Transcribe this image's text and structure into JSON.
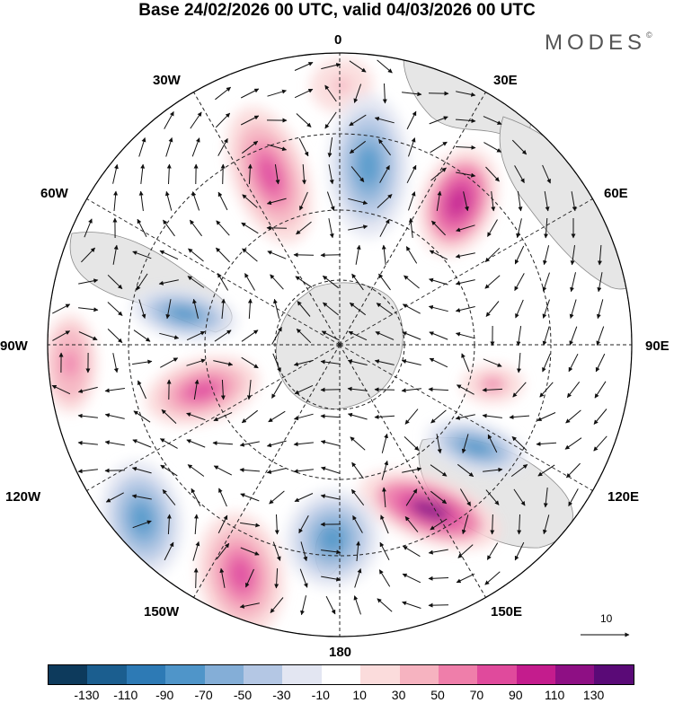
{
  "title": "Base 24/02/2026 00 UTC, valid 04/03/2026 00 UTC",
  "brand": "MODES",
  "brand_mark": "©",
  "lon_labels": {
    "l0": "0",
    "l30e": "30E",
    "l60e": "60E",
    "l90e": "90E",
    "l120e": "120E",
    "l150e": "150E",
    "l180": "180",
    "l150w": "150W",
    "l120w": "120W",
    "l90w": "90W",
    "l60w": "60W",
    "l30w": "30W"
  },
  "reference_vector_label": "10",
  "colorbar": {
    "colors": [
      "#0d3a5c",
      "#1b5e8f",
      "#2d7ab5",
      "#4f95c9",
      "#84aed7",
      "#b4c7e4",
      "#e3e6f2",
      "#ffffff",
      "#fbdcdc",
      "#f6b3c0",
      "#ef7eaa",
      "#e04a9c",
      "#c41c8d",
      "#8e0f84",
      "#5a0a77"
    ],
    "ticks": [
      "-130",
      "-110",
      "-90",
      "-70",
      "-50",
      "-30",
      "-10",
      "10",
      "30",
      "50",
      "70",
      "90",
      "110",
      "130"
    ]
  },
  "anomaly_centers": [
    {
      "name": "positive-anomaly-zero-meridian-north",
      "value": 30
    },
    {
      "name": "positive-anomaly-30w-sector",
      "value": 85
    },
    {
      "name": "negative-anomaly-near-0",
      "value": -80
    },
    {
      "name": "positive-anomaly-30e-60e",
      "value": 105
    },
    {
      "name": "negative-anomaly-60w-75w",
      "value": -70
    },
    {
      "name": "positive-anomaly-90w",
      "value": 60
    },
    {
      "name": "positive-anomaly-100w",
      "value": 85
    },
    {
      "name": "positive-anomaly-90e-100e",
      "value": 50
    },
    {
      "name": "negative-anomaly-110e",
      "value": -90
    },
    {
      "name": "positive-anomaly-130e-150e",
      "value": 120
    },
    {
      "name": "negative-anomaly-120w-135w",
      "value": -90
    },
    {
      "name": "positive-anomaly-150w-160w",
      "value": 85
    },
    {
      "name": "negative-anomaly-170w-180",
      "value": -80
    }
  ]
}
